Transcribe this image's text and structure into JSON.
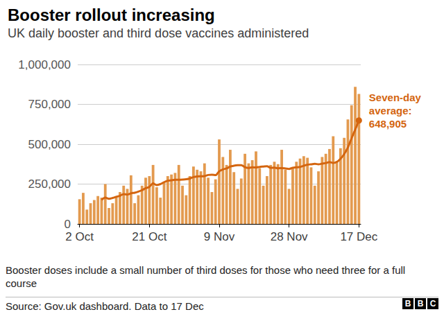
{
  "chart_data": {
    "type": "bar",
    "title": "Booster rollout increasing",
    "subtitle": "UK daily booster and third dose vaccines administered",
    "categories": [
      "2 Oct",
      null,
      null,
      null,
      null,
      null,
      null,
      null,
      null,
      null,
      null,
      null,
      null,
      null,
      null,
      null,
      null,
      null,
      null,
      "21 Oct",
      null,
      null,
      null,
      null,
      null,
      null,
      null,
      null,
      null,
      null,
      null,
      null,
      null,
      null,
      null,
      null,
      null,
      null,
      "9 Nov",
      null,
      null,
      null,
      null,
      null,
      null,
      null,
      null,
      null,
      null,
      null,
      null,
      null,
      null,
      null,
      null,
      null,
      null,
      "28 Nov",
      null,
      null,
      null,
      null,
      null,
      null,
      null,
      null,
      null,
      null,
      null,
      null,
      null,
      null,
      null,
      null,
      null,
      null,
      "17 Dec"
    ],
    "series": [
      {
        "type": "bar",
        "color": "#e39a4f",
        "values": [
          155000,
          195000,
          90000,
          130000,
          150000,
          175000,
          165000,
          250000,
          100000,
          130000,
          175000,
          200000,
          240000,
          220000,
          305000,
          130000,
          180000,
          240000,
          290000,
          300000,
          370000,
          230000,
          165000,
          265000,
          300000,
          310000,
          320000,
          370000,
          240000,
          180000,
          300000,
          360000,
          340000,
          330000,
          380000,
          290000,
          200000,
          280000,
          530000,
          420000,
          370000,
          465000,
          325000,
          220000,
          285000,
          440000,
          380000,
          400000,
          455000,
          350000,
          240000,
          300000,
          370000,
          390000,
          375000,
          465000,
          340000,
          220000,
          350000,
          390000,
          410000,
          425000,
          415000,
          355000,
          240000,
          330000,
          420000,
          440000,
          470000,
          550000,
          395000,
          475000,
          540000,
          655000,
          745000,
          860000,
          815000
        ]
      },
      {
        "type": "line",
        "color": "#d4650f",
        "annotation": [
          "Seven-day",
          "average:",
          "648,905"
        ],
        "values": [
          null,
          null,
          null,
          null,
          null,
          null,
          151000,
          165000,
          158000,
          163000,
          170000,
          177000,
          187000,
          184000,
          192000,
          196000,
          203000,
          212000,
          224000,
          233000,
          254000,
          244000,
          250000,
          262000,
          271000,
          274000,
          277000,
          277000,
          278000,
          280000,
          285000,
          294000,
          298000,
          299000,
          300000,
          307000,
          309000,
          306000,
          330000,
          342000,
          348000,
          360000,
          365000,
          368000,
          369000,
          356000,
          351000,
          355000,
          354000,
          358000,
          360000,
          362000,
          352000,
          353000,
          349000,
          350000,
          348000,
          345000,
          352000,
          355000,
          358000,
          365000,
          372000,
          374000,
          377000,
          374000,
          378000,
          382000,
          388000,
          383000,
          389000,
          409000,
          438000,
          480000,
          537000,
          592000,
          648905
        ]
      }
    ],
    "ylim": [
      0,
      1000000
    ],
    "yticks": [
      0,
      {
        "value": 250000,
        "label": "250,000"
      },
      {
        "value": 500000,
        "label": "500,000"
      },
      {
        "value": 750000,
        "label": "750,000"
      },
      {
        "value": 1000000,
        "label": "1,000,000"
      }
    ],
    "grid": true,
    "note": "Booster doses include a small number of third doses for those who need three for a full course",
    "source": "Source: Gov.uk dashboard. Data to 17 Dec",
    "logo": "BBC"
  }
}
